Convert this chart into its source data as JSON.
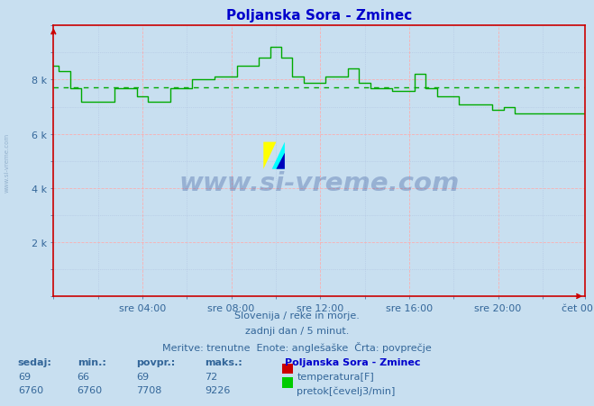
{
  "title": "Poljanska Sora - Zminec",
  "title_color": "#0000cc",
  "bg_color": "#c8dff0",
  "plot_bg_color": "#c8dff0",
  "grid_color_major": "#ffaaaa",
  "grid_color_minor": "#aabbdd",
  "axis_color": "#cc0000",
  "tick_color": "#336699",
  "watermark_text": "www.si-vreme.com",
  "watermark_color": "#1a3a8a",
  "watermark_alpha": 0.28,
  "sidebar_text": "www.si-vreme.com",
  "subtitle1": "Slovenija / reke in morje.",
  "subtitle2": "zadnji dan / 5 minut.",
  "subtitle3": "Meritve: trenutne  Enote: anglešaške  Črta: povprečje",
  "subtitle_color": "#336699",
  "legend_title": "Poljanska Sora - Zminec",
  "legend_title_color": "#0000cc",
  "legend_items": [
    {
      "label": "temperatura[F]",
      "color": "#cc0000"
    },
    {
      "label": "pretok[čevelj3/min]",
      "color": "#00cc00"
    }
  ],
  "table_headers": [
    "sedaj:",
    "min.:",
    "povpr.:",
    "maks.:"
  ],
  "table_row1": [
    "69",
    "66",
    "69",
    "72"
  ],
  "table_row2": [
    "6760",
    "6760",
    "7708",
    "9226"
  ],
  "table_color": "#336699",
  "table_bold_color": "#336699",
  "ylim": [
    0,
    10000
  ],
  "yticks": [
    2000,
    4000,
    6000,
    8000
  ],
  "ytick_labels": [
    "2 k",
    "4 k",
    "6 k",
    "8 k"
  ],
  "xtick_positions": [
    48,
    96,
    144,
    192,
    240,
    287
  ],
  "xtick_labels": [
    "sre 04:00",
    "sre 08:00",
    "sre 12:00",
    "sre 16:00",
    "sre 20:00",
    "čet 00:00"
  ],
  "avg_value": 7708,
  "flow_color": "#00aa00",
  "avg_line_color": "#00aa00",
  "flow_data": [
    8500,
    8500,
    8500,
    8300,
    8300,
    8300,
    8300,
    8300,
    8300,
    7700,
    7700,
    7700,
    7700,
    7700,
    7700,
    7200,
    7200,
    7200,
    7200,
    7200,
    7200,
    7200,
    7200,
    7200,
    7200,
    7200,
    7200,
    7200,
    7200,
    7200,
    7200,
    7200,
    7200,
    7700,
    7700,
    7700,
    7700,
    7700,
    7700,
    7700,
    7700,
    7700,
    7700,
    7700,
    7700,
    7400,
    7400,
    7400,
    7400,
    7400,
    7400,
    7200,
    7200,
    7200,
    7200,
    7200,
    7200,
    7200,
    7200,
    7200,
    7200,
    7200,
    7200,
    7700,
    7700,
    7700,
    7700,
    7700,
    7700,
    7700,
    7700,
    7700,
    7700,
    7700,
    7700,
    8000,
    8000,
    8000,
    8000,
    8000,
    8000,
    8000,
    8000,
    8000,
    8000,
    8000,
    8000,
    8100,
    8100,
    8100,
    8100,
    8100,
    8100,
    8100,
    8100,
    8100,
    8100,
    8100,
    8100,
    8500,
    8500,
    8500,
    8500,
    8500,
    8500,
    8500,
    8500,
    8500,
    8500,
    8500,
    8500,
    8800,
    8800,
    8800,
    8800,
    8800,
    8800,
    9226,
    9226,
    9226,
    9226,
    9226,
    9226,
    8800,
    8800,
    8800,
    8800,
    8800,
    8800,
    8100,
    8100,
    8100,
    8100,
    8100,
    8100,
    7900,
    7900,
    7900,
    7900,
    7900,
    7900,
    7900,
    7900,
    7900,
    7900,
    7900,
    7900,
    8100,
    8100,
    8100,
    8100,
    8100,
    8100,
    8100,
    8100,
    8100,
    8100,
    8100,
    8100,
    8400,
    8400,
    8400,
    8400,
    8400,
    8400,
    7900,
    7900,
    7900,
    7900,
    7900,
    7900,
    7700,
    7700,
    7700,
    7700,
    7700,
    7700,
    7700,
    7700,
    7700,
    7700,
    7700,
    7700,
    7600,
    7600,
    7600,
    7600,
    7600,
    7600,
    7600,
    7600,
    7600,
    7600,
    7600,
    7600,
    8200,
    8200,
    8200,
    8200,
    8200,
    8200,
    7700,
    7700,
    7700,
    7700,
    7700,
    7700,
    7400,
    7400,
    7400,
    7400,
    7400,
    7400,
    7400,
    7400,
    7400,
    7400,
    7400,
    7400,
    7100,
    7100,
    7100,
    7100,
    7100,
    7100,
    7100,
    7100,
    7100,
    7100,
    7100,
    7100,
    7100,
    7100,
    7100,
    7100,
    7100,
    7100,
    6900,
    6900,
    6900,
    6900,
    6900,
    6900,
    7000,
    7000,
    7000,
    7000,
    7000,
    7000,
    6760,
    6760,
    6760,
    6760,
    6760,
    6760,
    6760,
    6760,
    6760
  ]
}
